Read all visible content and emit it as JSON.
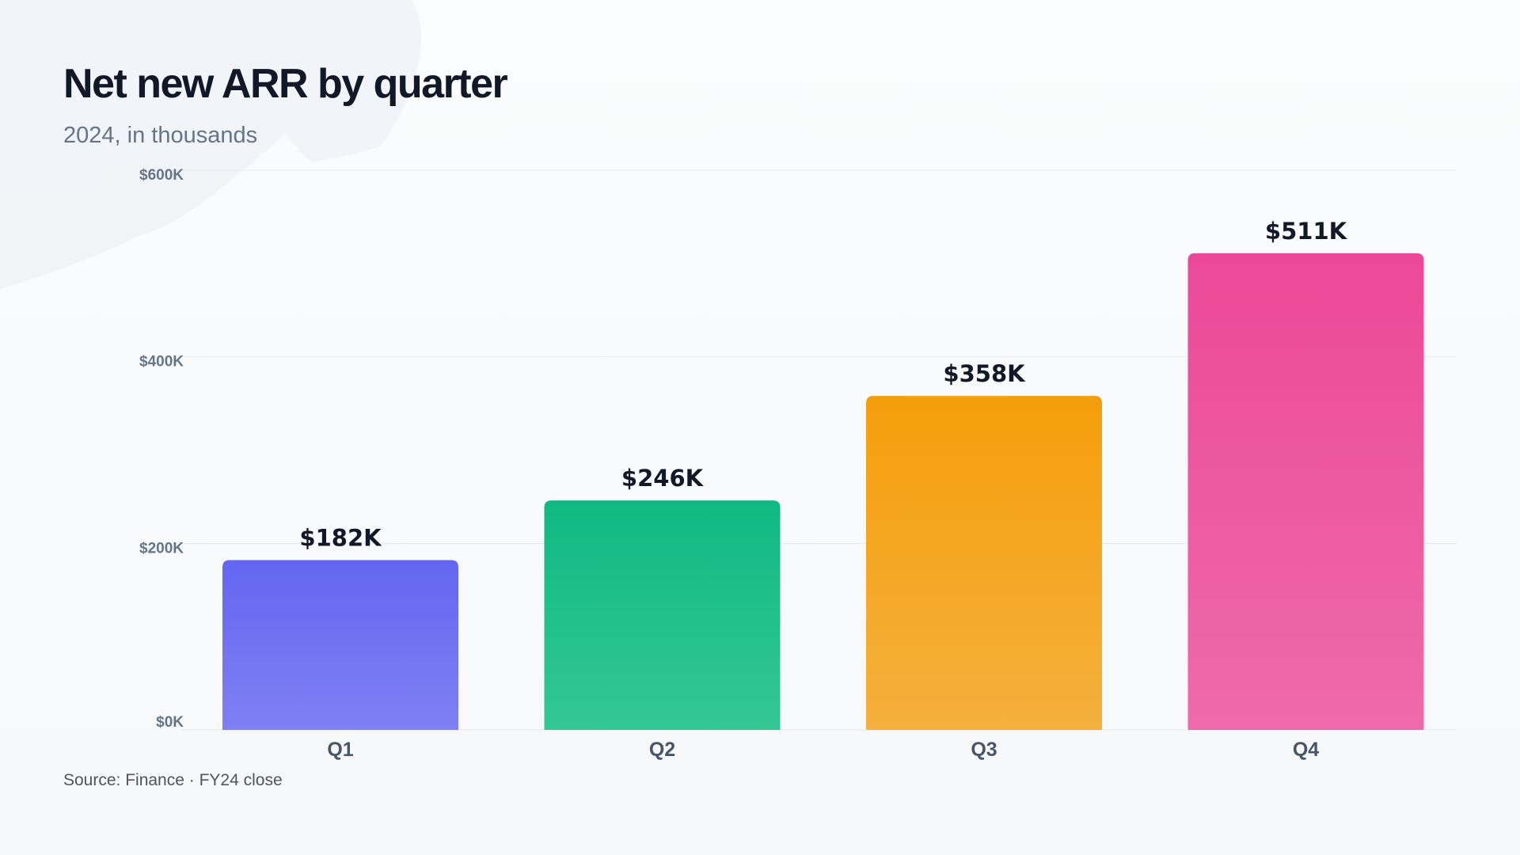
{
  "subtitle": "2024, in thousands",
  "source": "Source: Finance · FY24 close",
  "chart_data": {
    "type": "bar",
    "title": "Net new ARR by quarter",
    "categories": [
      "Q1",
      "Q2",
      "Q3",
      "Q4"
    ],
    "values": [
      182,
      246,
      358,
      511
    ],
    "value_labels": [
      "$182K",
      "$246K",
      "$358K",
      "$511K"
    ],
    "ylim": [
      0,
      600
    ],
    "y_ticks": [
      0,
      200,
      400,
      600
    ],
    "y_tick_labels": [
      "$0K",
      "$200K",
      "$400K",
      "$600K"
    ],
    "bar_colors": [
      [
        "#6366f1",
        "#7f80f3"
      ],
      [
        "#10b981",
        "#34c795"
      ],
      [
        "#f59e0b",
        "#f4b03d"
      ],
      [
        "#ec4899",
        "#ef6aaa"
      ]
    ],
    "grid": true,
    "legend": "none"
  }
}
